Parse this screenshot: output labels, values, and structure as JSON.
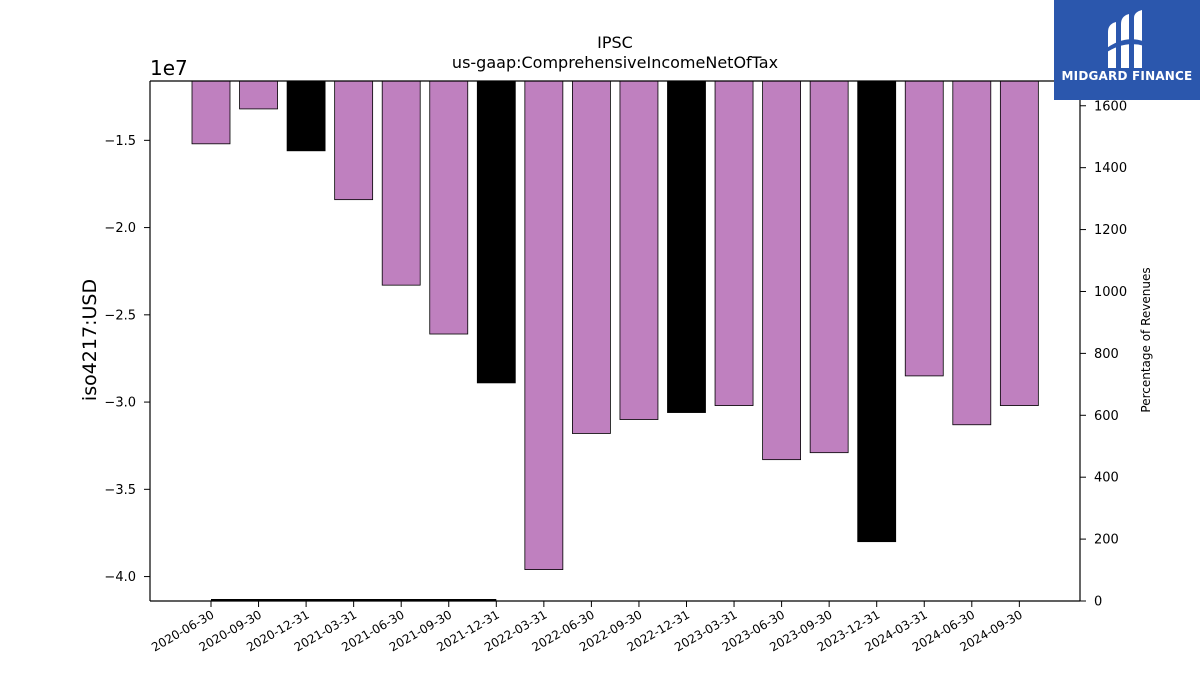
{
  "chart_data": {
    "type": "bar",
    "title": "IPSC",
    "subtitle": "us-gaap:ComprehensiveIncomeNetOfTax",
    "ylabel": "iso4217:USD",
    "y2label": "Percentage of Revenues",
    "y_offset_label": "1e7",
    "ylim": [
      -41400000,
      -11600000
    ],
    "y2lim": [
      0,
      1680
    ],
    "yticks": [
      -40000000,
      -35000000,
      -30000000,
      -25000000,
      -20000000,
      -15000000
    ],
    "ytick_labels": [
      "−4.0",
      "−3.5",
      "−3.0",
      "−2.5",
      "−2.0",
      "−1.5"
    ],
    "y2ticks": [
      0,
      200,
      400,
      600,
      800,
      1000,
      1200,
      1400,
      1600
    ],
    "y2tick_labels": [
      "0",
      "200",
      "400",
      "600",
      "800",
      "1000",
      "1200",
      "1400",
      "1600"
    ],
    "categories": [
      "2020-06-30",
      "2020-09-30",
      "2020-12-31",
      "2021-03-31",
      "2021-06-30",
      "2021-09-30",
      "2021-12-31",
      "2022-03-31",
      "2022-06-30",
      "2022-09-30",
      "2022-12-31",
      "2023-03-31",
      "2023-06-30",
      "2023-09-30",
      "2023-12-31",
      "2024-03-31",
      "2024-06-30",
      "2024-09-30"
    ],
    "values": [
      -15200000,
      -13200000,
      -15600000,
      -18400000,
      -23300000,
      -26100000,
      -28900000,
      -39600000,
      -31800000,
      -31000000,
      -30600000,
      -30200000,
      -33300000,
      -32900000,
      -38000000,
      -28500000,
      -31300000,
      -30200000
    ],
    "bar_colors": [
      "#bf80bf",
      "#bf80bf",
      "#000000",
      "#bf80bf",
      "#bf80bf",
      "#bf80bf",
      "#000000",
      "#bf80bf",
      "#bf80bf",
      "#bf80bf",
      "#000000",
      "#bf80bf",
      "#bf80bf",
      "#bf80bf",
      "#000000",
      "#bf80bf",
      "#bf80bf",
      "#bf80bf"
    ],
    "secondary_line": {
      "categories_from": 0,
      "categories_to": 6,
      "value": 0,
      "color": "#000000"
    },
    "grid": false,
    "legend": "none"
  },
  "logo": {
    "text": "MIDGARD FINANCE",
    "background": "#2b57ad"
  }
}
